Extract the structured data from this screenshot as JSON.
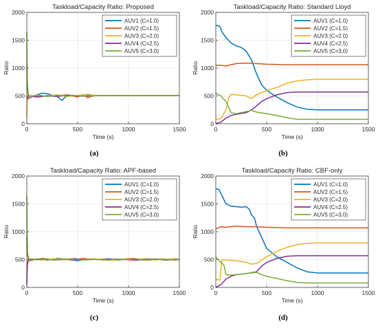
{
  "colors": {
    "AUV1": "#0072BD",
    "AUV2": "#D95319",
    "AUV3": "#EDB120",
    "AUV4": "#7E2F8E",
    "AUV5": "#77AC30",
    "grid": "#e6e6e6",
    "axis": "#262626"
  },
  "chart_data": [
    {
      "id": "a",
      "type": "line",
      "title": "Taskload/Capacity Ratio: Proposed",
      "xlabel": "Time (s)",
      "ylabel": "Ratio",
      "xlim": [
        0,
        1500
      ],
      "ylim": [
        0,
        2000
      ],
      "xticks": [
        0,
        500,
        1000,
        1500
      ],
      "yticks": [
        0,
        500,
        1000,
        1500,
        2000
      ],
      "grid": true,
      "legend_position": "top-right",
      "caption": "(a)",
      "series": [
        {
          "name": "AUV1 (C=1.0)",
          "x": [
            0,
            5,
            15,
            30,
            60,
            100,
            150,
            200,
            250,
            300,
            330,
            350,
            370,
            400,
            450,
            500,
            550,
            600,
            700,
            800,
            1000,
            1500
          ],
          "y": [
            1000,
            700,
            520,
            480,
            500,
            520,
            550,
            540,
            510,
            490,
            440,
            420,
            470,
            500,
            510,
            505,
            495,
            510,
            505,
            505,
            505,
            505
          ]
        },
        {
          "name": "AUV2 (C=1.5)",
          "x": [
            0,
            5,
            15,
            40,
            100,
            200,
            300,
            400,
            500,
            550,
            600,
            650,
            700,
            1500
          ],
          "y": [
            1050,
            600,
            500,
            505,
            495,
            505,
            500,
            520,
            480,
            520,
            470,
            500,
            505,
            505
          ]
        },
        {
          "name": "AUV3 (C=2.0)",
          "x": [
            0,
            4,
            10,
            20,
            50,
            100,
            200,
            300,
            400,
            500,
            600,
            700,
            1500
          ],
          "y": [
            100,
            400,
            480,
            510,
            490,
            510,
            500,
            520,
            490,
            510,
            530,
            505,
            505
          ]
        },
        {
          "name": "AUV4 (C=2.5)",
          "x": [
            0,
            5,
            12,
            30,
            60,
            100,
            200,
            300,
            400,
            500,
            600,
            700,
            1500
          ],
          "y": [
            500,
            480,
            450,
            470,
            490,
            480,
            500,
            490,
            510,
            500,
            495,
            505,
            505
          ]
        },
        {
          "name": "AUV5 (C=3.0)",
          "x": [
            0,
            3,
            8,
            15,
            30,
            60,
            100,
            200,
            300,
            400,
            500,
            600,
            700,
            1500
          ],
          "y": [
            1650,
            1000,
            600,
            530,
            480,
            500,
            520,
            490,
            510,
            500,
            505,
            500,
            505,
            505
          ]
        }
      ]
    },
    {
      "id": "b",
      "type": "line",
      "title": "Taskload/Capacity Ratio: Standard Lloyd",
      "xlabel": "Time (s)",
      "ylabel": "Ratio",
      "xlim": [
        0,
        1500
      ],
      "ylim": [
        0,
        2000
      ],
      "xticks": [
        0,
        500,
        1000,
        1500
      ],
      "yticks": [
        0,
        500,
        1000,
        1500,
        2000
      ],
      "grid": true,
      "legend_position": "top-right",
      "caption": "(b)",
      "series": [
        {
          "name": "AUV1 (C=1.0)",
          "x": [
            0,
            40,
            60,
            100,
            150,
            200,
            250,
            300,
            350,
            400,
            450,
            500,
            600,
            700,
            800,
            900,
            1000,
            1500
          ],
          "y": [
            1770,
            1750,
            1650,
            1550,
            1450,
            1400,
            1370,
            1300,
            1150,
            900,
            700,
            600,
            480,
            380,
            300,
            260,
            250,
            250
          ]
        },
        {
          "name": "AUV2 (C=1.5)",
          "x": [
            0,
            50,
            100,
            150,
            200,
            300,
            400,
            500,
            700,
            1000,
            1500
          ],
          "y": [
            1050,
            1050,
            1040,
            1060,
            1080,
            1090,
            1080,
            1070,
            1060,
            1060,
            1060
          ]
        },
        {
          "name": "AUV3 (C=2.0)",
          "x": [
            0,
            50,
            100,
            130,
            150,
            200,
            250,
            300,
            350,
            400,
            500,
            600,
            700,
            800,
            900,
            1000,
            1500
          ],
          "y": [
            80,
            90,
            250,
            480,
            530,
            520,
            510,
            500,
            450,
            520,
            600,
            650,
            730,
            770,
            790,
            800,
            800
          ]
        },
        {
          "name": "AUV4 (C=2.5)",
          "x": [
            0,
            50,
            100,
            150,
            200,
            300,
            350,
            400,
            450,
            500,
            600,
            700,
            800,
            1000,
            1500
          ],
          "y": [
            0,
            30,
            100,
            150,
            170,
            200,
            250,
            320,
            400,
            450,
            520,
            560,
            570,
            570,
            570
          ]
        },
        {
          "name": "AUV5 (C=3.0)",
          "x": [
            0,
            50,
            100,
            150,
            200,
            300,
            350,
            400,
            500,
            600,
            700,
            800,
            1000,
            1500
          ],
          "y": [
            550,
            500,
            400,
            200,
            180,
            220,
            240,
            210,
            180,
            150,
            110,
            80,
            80,
            80
          ]
        }
      ]
    },
    {
      "id": "c",
      "type": "line",
      "title": "Taskload/Capacity Ratio: APF-based",
      "xlabel": "Time (s)",
      "ylabel": "Ratio",
      "xlim": [
        0,
        1500
      ],
      "ylim": [
        0,
        2000
      ],
      "xticks": [
        0,
        500,
        1000,
        1500
      ],
      "yticks": [
        0,
        500,
        1000,
        1500,
        2000
      ],
      "grid": true,
      "legend_position": "top-right",
      "caption": "(c)",
      "series": [
        {
          "name": "AUV1 (C=1.0)",
          "x": [
            0,
            5,
            15,
            40,
            100,
            200,
            300,
            400,
            500,
            600,
            700,
            800,
            900,
            1000,
            1100,
            1200,
            1300,
            1400,
            1500
          ],
          "y": [
            900,
            650,
            520,
            500,
            510,
            490,
            520,
            500,
            480,
            510,
            500,
            515,
            490,
            510,
            500,
            490,
            510,
            500,
            505
          ]
        },
        {
          "name": "AUV2 (C=1.5)",
          "x": [
            0,
            5,
            15,
            50,
            150,
            250,
            350,
            450,
            550,
            650,
            750,
            850,
            950,
            1050,
            1150,
            1250,
            1350,
            1450,
            1500
          ],
          "y": [
            800,
            600,
            520,
            490,
            520,
            500,
            510,
            490,
            520,
            500,
            510,
            490,
            510,
            520,
            490,
            500,
            510,
            490,
            500
          ]
        },
        {
          "name": "AUV3 (C=2.0)",
          "x": [
            0,
            4,
            12,
            60,
            160,
            260,
            360,
            460,
            560,
            660,
            760,
            860,
            960,
            1060,
            1160,
            1260,
            1360,
            1460,
            1500
          ],
          "y": [
            100,
            420,
            500,
            510,
            490,
            515,
            495,
            510,
            490,
            515,
            500,
            490,
            510,
            495,
            515,
            490,
            505,
            515,
            500
          ]
        },
        {
          "name": "AUV4 (C=2.5)",
          "x": [
            0,
            5,
            15,
            70,
            170,
            270,
            370,
            470,
            570,
            670,
            770,
            870,
            970,
            1070,
            1170,
            1270,
            1370,
            1470,
            1500
          ],
          "y": [
            50,
            400,
            480,
            500,
            510,
            490,
            505,
            515,
            495,
            505,
            490,
            510,
            500,
            490,
            505,
            510,
            490,
            505,
            500
          ]
        },
        {
          "name": "AUV5 (C=3.0)",
          "x": [
            0,
            3,
            8,
            20,
            80,
            180,
            280,
            380,
            480,
            580,
            680,
            780,
            880,
            980,
            1080,
            1180,
            1280,
            1380,
            1500
          ],
          "y": [
            1650,
            1000,
            600,
            520,
            495,
            505,
            490,
            510,
            500,
            495,
            505,
            490,
            505,
            500,
            510,
            495,
            505,
            500,
            500
          ]
        }
      ]
    },
    {
      "id": "d",
      "type": "line",
      "title": "Taskload/Capacity Ratio: CBF-only",
      "xlabel": "Time (s)",
      "ylabel": "Ratio",
      "xlim": [
        0,
        1500
      ],
      "ylim": [
        0,
        2000
      ],
      "xticks": [
        0,
        500,
        1000,
        1500
      ],
      "yticks": [
        0,
        500,
        1000,
        1500,
        2000
      ],
      "grid": true,
      "legend_position": "top-right",
      "caption": "(d)",
      "series": [
        {
          "name": "AUV1 (C=1.0)",
          "x": [
            0,
            30,
            60,
            100,
            150,
            200,
            250,
            300,
            330,
            350,
            380,
            400,
            450,
            500,
            600,
            700,
            800,
            900,
            1000,
            1500
          ],
          "y": [
            1770,
            1760,
            1650,
            1500,
            1460,
            1450,
            1440,
            1450,
            1400,
            1300,
            1250,
            1100,
            900,
            700,
            550,
            450,
            350,
            280,
            260,
            260
          ]
        },
        {
          "name": "AUV2 (C=1.5)",
          "x": [
            0,
            50,
            100,
            200,
            300,
            400,
            500,
            700,
            1000,
            1500
          ],
          "y": [
            1050,
            1090,
            1080,
            1100,
            1090,
            1090,
            1080,
            1070,
            1070,
            1070
          ]
        },
        {
          "name": "AUV3 (C=2.0)",
          "x": [
            0,
            40,
            60,
            100,
            200,
            300,
            350,
            400,
            500,
            600,
            700,
            800,
            900,
            1000,
            1500
          ],
          "y": [
            150,
            130,
            500,
            490,
            480,
            450,
            420,
            430,
            550,
            650,
            720,
            770,
            790,
            800,
            800
          ]
        },
        {
          "name": "AUV4 (C=2.5)",
          "x": [
            0,
            50,
            100,
            150,
            200,
            300,
            400,
            450,
            500,
            600,
            700,
            800,
            900,
            1000,
            1500
          ],
          "y": [
            0,
            50,
            150,
            200,
            230,
            250,
            280,
            380,
            450,
            520,
            560,
            570,
            570,
            570,
            570
          ]
        },
        {
          "name": "AUV5 (C=3.0)",
          "x": [
            0,
            50,
            80,
            100,
            150,
            200,
            300,
            400,
            450,
            500,
            600,
            700,
            800,
            900,
            1000,
            1500
          ],
          "y": [
            550,
            450,
            400,
            230,
            220,
            230,
            250,
            270,
            230,
            200,
            160,
            120,
            90,
            80,
            80,
            80
          ]
        }
      ]
    }
  ]
}
